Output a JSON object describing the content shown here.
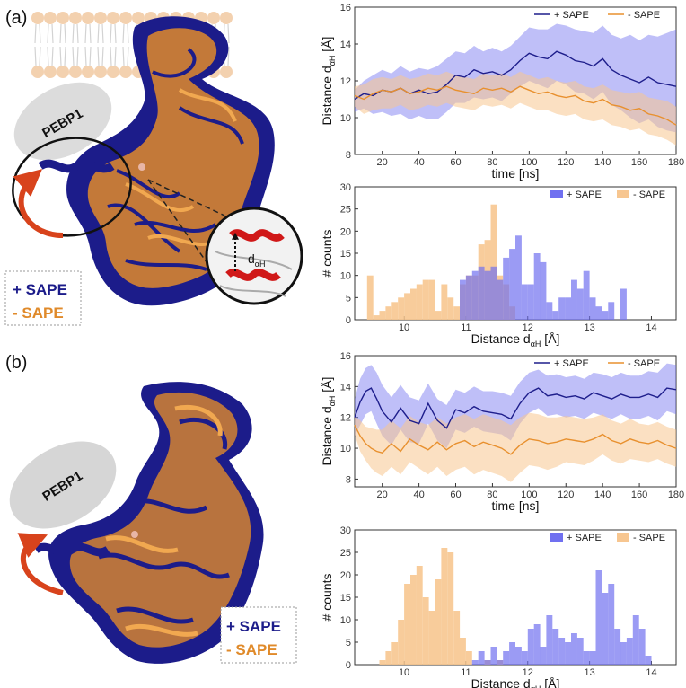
{
  "figure": {
    "panel_a_label": "(a)",
    "panel_b_label": "(b)",
    "pebp1_label": "PEBP1",
    "plus_sape": "+ SAPE",
    "minus_sape": "- SAPE",
    "inset_label": "d",
    "inset_sub": "αH",
    "colors": {
      "plus": "#1e1e8c",
      "plus_light": "#7070f0",
      "minus": "#e8902e",
      "minus_light": "#f7c690",
      "arrow": "#d8431c"
    }
  },
  "chart_data": [
    {
      "id": "a_time",
      "type": "line",
      "xlabel": "time [ns]",
      "ylabel_main": "Distance d",
      "ylabel_sub": "αH",
      "ylabel_unit": " [Å]",
      "xlim": [
        5,
        180
      ],
      "ylim": [
        8,
        16
      ],
      "xticks": [
        20,
        40,
        60,
        80,
        100,
        120,
        140,
        160,
        180
      ],
      "yticks": [
        8,
        10,
        12,
        14,
        16
      ],
      "legend": [
        "+ SAPE",
        "- SAPE"
      ],
      "series": [
        {
          "name": "+ SAPE",
          "x": [
            5,
            10,
            15,
            20,
            25,
            30,
            35,
            40,
            45,
            50,
            55,
            60,
            65,
            70,
            75,
            80,
            85,
            90,
            95,
            100,
            105,
            110,
            115,
            120,
            125,
            130,
            135,
            140,
            145,
            150,
            155,
            160,
            165,
            170,
            175,
            180
          ],
          "values": [
            11.0,
            11.3,
            11.2,
            11.5,
            11.4,
            11.6,
            11.3,
            11.5,
            11.3,
            11.4,
            11.8,
            12.3,
            12.2,
            12.6,
            12.4,
            12.5,
            12.3,
            12.6,
            13.1,
            13.5,
            13.3,
            13.2,
            13.6,
            13.4,
            13.1,
            13.0,
            12.8,
            13.2,
            12.6,
            12.3,
            12.1,
            11.9,
            12.2,
            11.9,
            11.8,
            11.7
          ],
          "upper": [
            11.5,
            12.0,
            12.3,
            12.6,
            12.4,
            12.8,
            12.5,
            12.7,
            12.6,
            12.8,
            13.2,
            13.6,
            13.5,
            13.9,
            13.6,
            13.8,
            13.6,
            13.9,
            14.4,
            14.9,
            14.8,
            14.8,
            15.1,
            15.0,
            14.8,
            14.7,
            14.6,
            15.0,
            14.5,
            14.3,
            14.5,
            14.2,
            14.5,
            14.4,
            14.6,
            14.8
          ],
          "lower": [
            10.3,
            10.5,
            10.2,
            10.3,
            10.1,
            10.2,
            9.9,
            10.1,
            9.9,
            9.9,
            10.3,
            10.8,
            10.8,
            11.1,
            11.0,
            11.1,
            10.9,
            11.3,
            11.7,
            12.0,
            11.8,
            11.6,
            12.0,
            11.8,
            11.4,
            11.3,
            11.0,
            11.4,
            10.7,
            10.4,
            10.0,
            9.7,
            9.9,
            9.5,
            9.3,
            9.2
          ]
        },
        {
          "name": "- SAPE",
          "x": [
            5,
            10,
            15,
            20,
            25,
            30,
            35,
            40,
            45,
            50,
            55,
            60,
            65,
            70,
            75,
            80,
            85,
            90,
            95,
            100,
            105,
            110,
            115,
            120,
            125,
            130,
            135,
            140,
            145,
            150,
            155,
            160,
            165,
            170,
            175,
            180
          ],
          "values": [
            11.2,
            11.0,
            11.3,
            11.5,
            11.4,
            11.6,
            11.3,
            11.4,
            11.6,
            11.5,
            11.7,
            11.5,
            11.4,
            11.3,
            11.6,
            11.5,
            11.6,
            11.4,
            11.7,
            11.5,
            11.3,
            11.4,
            11.2,
            11.1,
            11.2,
            10.9,
            10.8,
            11.0,
            10.7,
            10.6,
            10.4,
            10.5,
            10.2,
            10.1,
            9.9,
            9.6
          ],
          "upper": [
            11.7,
            11.8,
            12.1,
            12.2,
            12.1,
            12.3,
            12.1,
            12.2,
            12.4,
            12.3,
            12.5,
            12.3,
            12.2,
            12.1,
            12.4,
            12.3,
            12.4,
            12.2,
            12.5,
            12.3,
            12.1,
            12.2,
            12.0,
            11.9,
            12.0,
            11.7,
            11.6,
            11.8,
            11.5,
            11.4,
            11.3,
            11.4,
            11.1,
            11.0,
            10.9,
            10.6
          ],
          "lower": [
            10.6,
            10.2,
            10.4,
            10.5,
            10.5,
            10.7,
            10.4,
            10.5,
            10.7,
            10.6,
            10.8,
            10.6,
            10.5,
            10.4,
            10.7,
            10.6,
            10.7,
            10.5,
            10.8,
            10.6,
            10.4,
            10.4,
            10.2,
            10.1,
            10.2,
            9.9,
            9.8,
            9.9,
            9.6,
            9.5,
            9.3,
            9.4,
            9.1,
            9.0,
            8.8,
            8.5
          ]
        }
      ]
    },
    {
      "id": "a_hist",
      "type": "bar",
      "xlabel_main": "Distance d",
      "xlabel_sub": "αH",
      "xlabel_unit": " [Å]",
      "ylabel": "# counts",
      "xlim": [
        9.2,
        14.4
      ],
      "ylim": [
        0,
        30
      ],
      "xticks": [
        10,
        11,
        12,
        13,
        14
      ],
      "yticks": [
        0,
        5,
        10,
        15,
        20,
        25,
        30
      ],
      "bin_width": 0.1,
      "legend": [
        "+ SAPE",
        "- SAPE"
      ],
      "series": [
        {
          "name": "- SAPE",
          "bin_starts": [
            9.4,
            9.5,
            9.6,
            9.7,
            9.8,
            9.9,
            10.0,
            10.1,
            10.2,
            10.3,
            10.4,
            10.5,
            10.6,
            10.7,
            10.8,
            10.9,
            11.0,
            11.1,
            11.2,
            11.3,
            11.4,
            11.5,
            11.6,
            11.7
          ],
          "values": [
            10,
            1,
            2,
            3,
            4,
            5,
            6,
            7,
            8,
            9,
            9,
            2,
            8,
            5,
            3,
            8,
            10,
            10,
            17,
            18,
            26,
            10,
            8,
            3
          ]
        },
        {
          "name": "+ SAPE",
          "bin_starts": [
            10.9,
            11.0,
            11.1,
            11.2,
            11.3,
            11.4,
            11.5,
            11.6,
            11.7,
            11.8,
            11.9,
            12.0,
            12.1,
            12.2,
            12.3,
            12.4,
            12.5,
            12.6,
            12.7,
            12.8,
            12.9,
            13.0,
            13.1,
            13.2,
            13.3,
            13.4,
            13.5
          ],
          "values": [
            9,
            10,
            11,
            12,
            11,
            12,
            9,
            14,
            16,
            19,
            8,
            8,
            15,
            13,
            4,
            2,
            5,
            5,
            9,
            7,
            11,
            5,
            3,
            2,
            4,
            0,
            7
          ]
        }
      ]
    },
    {
      "id": "b_time",
      "type": "line",
      "xlabel": "time [ns]",
      "ylabel_main": "Distance d",
      "ylabel_sub": "αH",
      "ylabel_unit": " [Å]",
      "xlim": [
        5,
        180
      ],
      "ylim": [
        7.5,
        16
      ],
      "xticks": [
        20,
        40,
        60,
        80,
        100,
        120,
        140,
        160,
        180
      ],
      "yticks": [
        8,
        10,
        12,
        14,
        16
      ],
      "legend": [
        "+ SAPE",
        "- SAPE"
      ],
      "series": [
        {
          "name": "+ SAPE",
          "x": [
            5,
            8,
            11,
            14,
            17,
            20,
            25,
            30,
            35,
            40,
            45,
            50,
            55,
            60,
            65,
            70,
            75,
            80,
            85,
            90,
            95,
            100,
            105,
            110,
            115,
            120,
            125,
            130,
            135,
            140,
            145,
            150,
            155,
            160,
            165,
            170,
            175,
            180
          ],
          "values": [
            12.0,
            13.0,
            13.7,
            13.9,
            13.2,
            12.4,
            11.7,
            12.6,
            11.8,
            11.6,
            12.9,
            11.8,
            11.3,
            12.5,
            12.3,
            12.7,
            12.4,
            12.3,
            12.2,
            11.9,
            12.9,
            13.6,
            13.9,
            13.4,
            13.5,
            13.3,
            13.4,
            13.2,
            13.6,
            13.4,
            13.2,
            13.5,
            13.3,
            13.3,
            13.5,
            13.3,
            13.9,
            13.8
          ],
          "upper": [
            13.2,
            14.5,
            15.2,
            15.4,
            14.9,
            14.1,
            13.3,
            14.1,
            13.3,
            13.1,
            14.2,
            13.2,
            12.8,
            13.8,
            13.6,
            14.0,
            13.7,
            13.7,
            13.6,
            13.4,
            14.3,
            14.9,
            15.1,
            14.7,
            14.8,
            14.6,
            14.7,
            14.5,
            14.9,
            14.8,
            14.6,
            14.9,
            14.7,
            14.7,
            15.0,
            14.9,
            15.5,
            15.4
          ],
          "lower": [
            10.8,
            11.5,
            12.2,
            12.4,
            11.6,
            10.8,
            10.2,
            11.2,
            10.4,
            10.3,
            11.6,
            10.5,
            10.0,
            11.2,
            11.0,
            11.4,
            11.1,
            11.0,
            10.9,
            10.5,
            11.6,
            12.3,
            12.6,
            12.1,
            12.2,
            12.0,
            12.1,
            11.9,
            12.3,
            12.1,
            11.9,
            12.2,
            11.9,
            11.9,
            12.1,
            11.8,
            12.4,
            12.2
          ]
        },
        {
          "name": "- SAPE",
          "x": [
            5,
            8,
            11,
            14,
            17,
            20,
            25,
            30,
            35,
            40,
            45,
            50,
            55,
            60,
            65,
            70,
            75,
            80,
            85,
            90,
            95,
            100,
            105,
            110,
            115,
            120,
            125,
            130,
            135,
            140,
            145,
            150,
            155,
            160,
            165,
            170,
            175,
            180
          ],
          "values": [
            11.5,
            10.8,
            10.3,
            10.0,
            9.8,
            9.7,
            10.3,
            9.8,
            10.6,
            10.2,
            9.9,
            10.4,
            9.9,
            10.3,
            10.5,
            10.1,
            10.4,
            10.2,
            10.0,
            9.6,
            10.2,
            10.6,
            10.5,
            10.3,
            10.4,
            10.6,
            10.5,
            10.4,
            10.6,
            10.9,
            10.5,
            10.3,
            10.6,
            10.4,
            10.3,
            10.5,
            10.2,
            10.0
          ],
          "upper": [
            12.1,
            11.8,
            11.4,
            11.3,
            11.2,
            11.2,
            11.8,
            11.3,
            12.1,
            11.7,
            11.5,
            12.0,
            11.6,
            12.0,
            12.2,
            11.9,
            12.2,
            12.0,
            11.8,
            11.5,
            12.0,
            12.3,
            12.2,
            12.0,
            12.0,
            12.1,
            12.0,
            11.9,
            12.0,
            12.2,
            11.8,
            11.6,
            11.9,
            11.6,
            11.5,
            11.7,
            11.4,
            11.2
          ],
          "lower": [
            10.9,
            9.8,
            9.2,
            8.7,
            8.4,
            8.2,
            8.8,
            8.3,
            9.1,
            8.7,
            8.3,
            8.8,
            8.2,
            8.6,
            8.8,
            8.3,
            8.6,
            8.4,
            8.2,
            7.8,
            8.4,
            8.9,
            8.8,
            8.6,
            8.8,
            9.1,
            9.0,
            8.9,
            9.2,
            9.6,
            9.2,
            9.0,
            9.3,
            9.2,
            9.1,
            9.3,
            9.0,
            8.8
          ]
        }
      ]
    },
    {
      "id": "b_hist",
      "type": "bar",
      "xlabel_main": "Distance d",
      "xlabel_sub": "αH",
      "xlabel_unit": " [Å]",
      "ylabel": "# counts",
      "xlim": [
        9.2,
        14.4
      ],
      "ylim": [
        0,
        30
      ],
      "xticks": [
        10,
        11,
        12,
        13,
        14
      ],
      "yticks": [
        0,
        5,
        10,
        15,
        20,
        25,
        30
      ],
      "bin_width": 0.1,
      "legend": [
        "+ SAPE",
        "- SAPE"
      ],
      "series": [
        {
          "name": "- SAPE",
          "bin_starts": [
            9.6,
            9.7,
            9.8,
            9.9,
            10.0,
            10.1,
            10.2,
            10.3,
            10.4,
            10.5,
            10.6,
            10.7,
            10.8,
            10.9,
            11.0,
            11.3,
            11.5
          ],
          "values": [
            1,
            3,
            5,
            10,
            18,
            20,
            22,
            15,
            12,
            19,
            26,
            25,
            12,
            6,
            3,
            1,
            1
          ]
        },
        {
          "name": "+ SAPE",
          "bin_starts": [
            11.1,
            11.2,
            11.3,
            11.4,
            11.5,
            11.6,
            11.7,
            11.8,
            11.9,
            12.0,
            12.1,
            12.2,
            12.3,
            12.4,
            12.5,
            12.6,
            12.7,
            12.8,
            12.9,
            13.0,
            13.1,
            13.2,
            13.3,
            13.4,
            13.5,
            13.6,
            13.7,
            13.8,
            13.9
          ],
          "values": [
            1,
            3,
            1,
            4,
            1,
            3,
            5,
            4,
            3,
            8,
            9,
            4,
            11,
            8,
            6,
            5,
            7,
            6,
            3,
            3,
            21,
            16,
            18,
            8,
            5,
            6,
            11,
            8,
            2
          ]
        }
      ]
    }
  ]
}
